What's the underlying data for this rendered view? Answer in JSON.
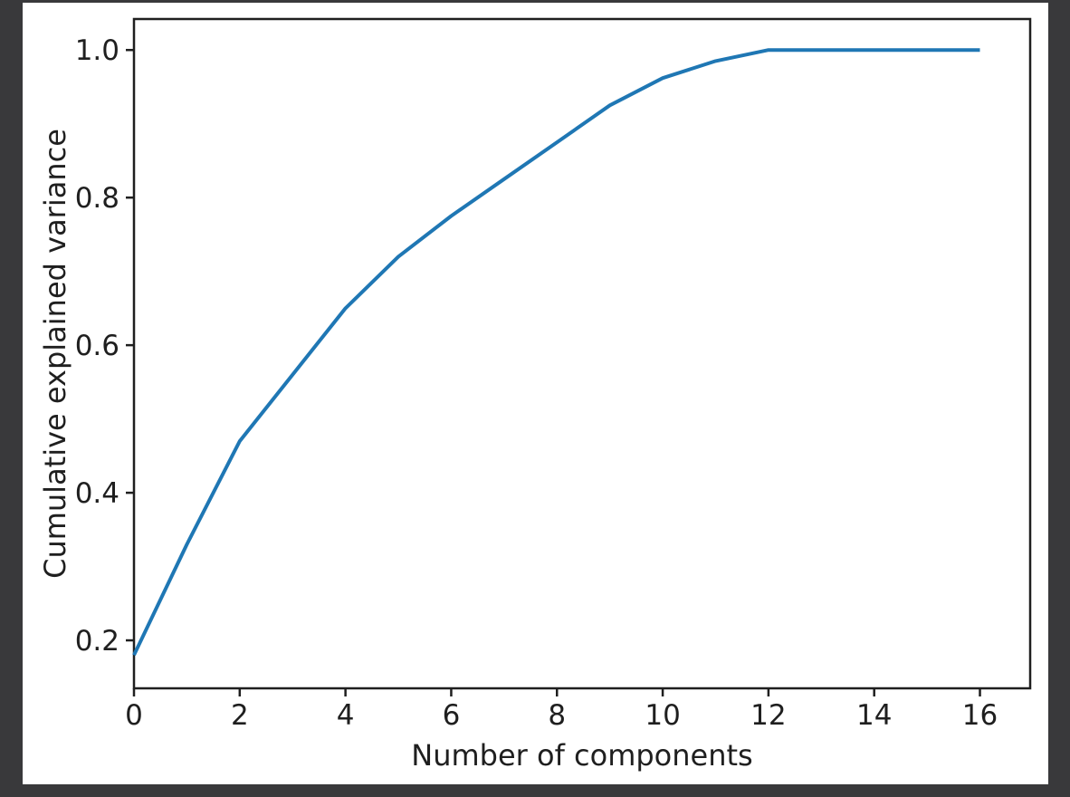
{
  "page": {
    "background_color": "#39393b",
    "figure_background_color": "#ffffff"
  },
  "chart_data": {
    "type": "line",
    "title": "",
    "xlabel": "Number of components",
    "ylabel": "Cumulative explained variance",
    "x": [
      0,
      1,
      2,
      3,
      4,
      5,
      6,
      7,
      8,
      9,
      10,
      11,
      12,
      13,
      14,
      15,
      16
    ],
    "y": [
      0.18,
      0.33,
      0.47,
      0.56,
      0.65,
      0.72,
      0.775,
      0.825,
      0.875,
      0.925,
      0.962,
      0.985,
      1.0,
      1.0,
      1.0,
      1.0,
      1.0
    ],
    "xlim": [
      0,
      16.95
    ],
    "ylim": [
      0.135,
      1.042
    ],
    "xticks": {
      "values": [
        0,
        2,
        4,
        6,
        8,
        10,
        12,
        14,
        16
      ],
      "labels": [
        "0",
        "2",
        "4",
        "6",
        "8",
        "10",
        "12",
        "14",
        "16"
      ]
    },
    "yticks": {
      "values": [
        0.2,
        0.4,
        0.6,
        0.8,
        1.0
      ],
      "labels": [
        "0.2",
        "0.4",
        "0.6",
        "0.8",
        "1.0"
      ]
    },
    "grid": false,
    "legend": null,
    "line_color": "#1f77b4",
    "axis_color": "#1f1f1f",
    "text_color": "#1f1f1f"
  }
}
